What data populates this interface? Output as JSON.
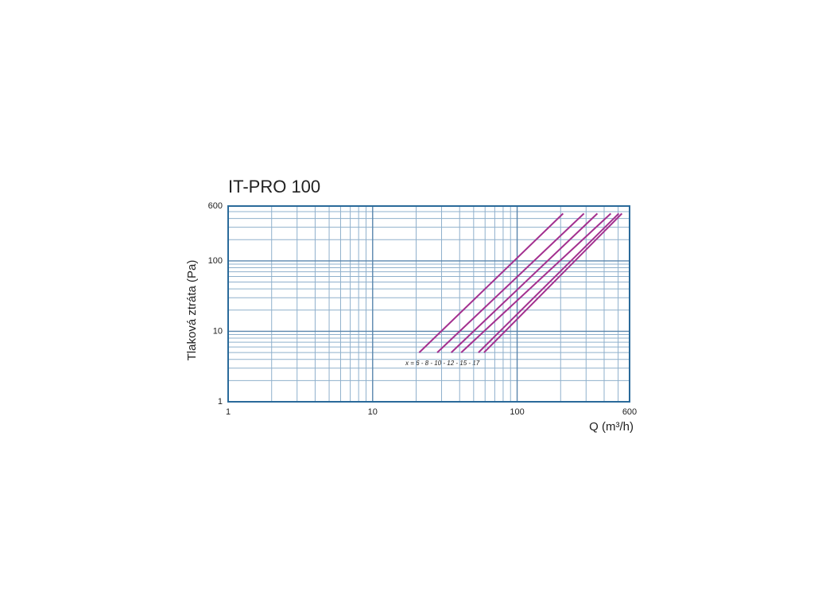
{
  "chart_data": {
    "type": "line",
    "title": "IT-PRO 100",
    "xlabel": "Q (m³/h)",
    "ylabel": "Tlaková ztráta (Pa)",
    "annotation": "x = 6 - 8 - 10 - 12 - 15 - 17",
    "xscale": "log",
    "yscale": "log",
    "grid": true,
    "xlim": [
      1,
      600
    ],
    "ylim": [
      1,
      600
    ],
    "xticks": [
      1,
      10,
      100,
      600
    ],
    "yticks": [
      1,
      10,
      100,
      600
    ],
    "x_minor_grid": [
      2,
      3,
      4,
      5,
      6,
      7,
      8,
      9,
      20,
      30,
      40,
      50,
      60,
      70,
      80,
      90,
      200,
      300,
      400,
      500
    ],
    "y_minor_grid": [
      2,
      3,
      4,
      5,
      6,
      7,
      8,
      9,
      20,
      30,
      40,
      50,
      60,
      70,
      80,
      90,
      200,
      300,
      400,
      500
    ],
    "series": [
      {
        "color": "#a3308f",
        "x": [
          21,
          208
        ],
        "values": [
          5,
          470
        ]
      },
      {
        "color": "#a3308f",
        "x": [
          28,
          290
        ],
        "values": [
          5,
          470
        ]
      },
      {
        "color": "#a3308f",
        "x": [
          35,
          359
        ],
        "values": [
          5,
          470
        ]
      },
      {
        "color": "#a3308f",
        "x": [
          41,
          445
        ],
        "values": [
          5,
          470
        ]
      },
      {
        "color": "#a3308f",
        "x": [
          54,
          505
        ],
        "values": [
          5,
          470
        ]
      },
      {
        "color": "#a3308f",
        "x": [
          59,
          531
        ],
        "values": [
          5,
          470
        ]
      }
    ]
  }
}
